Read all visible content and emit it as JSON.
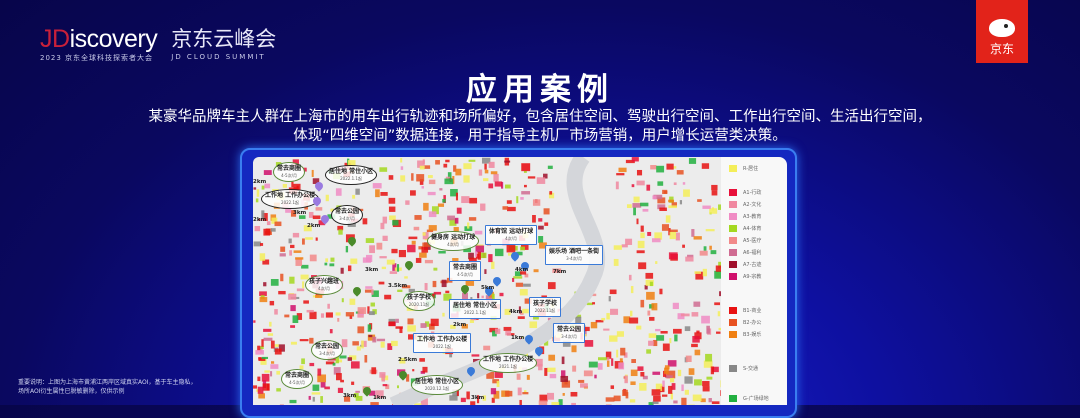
{
  "header": {
    "logo_prefix": "JD",
    "logo_suffix": "iscovery",
    "logo_sub": "2023 京东全球科技探索者大会",
    "event_cn": "京东云峰会",
    "event_en": "JD CLOUD SUMMIT",
    "brand": "京东"
  },
  "title": "应用案例",
  "description": [
    "某豪华品牌车主人群在上海市的用车出行轨迹和场所偏好，包含居住空间、驾驶出行空间、工作出行空间、生活出行空间，",
    "体现“四维空间”数据连接，用于指导主机厂市场营销，用户增长运营类决策。"
  ],
  "note": [
    "重要说明：上图为上海市黄浦江两岸区域真实AOI，基于车主隐私，",
    "场所AOI衍生属性已脱敏删除，仅供示例"
  ],
  "legend": [
    {
      "label": "R-居住",
      "color": "#f4ee5a"
    },
    {
      "label": "A1-行政",
      "color": "#e8103a"
    },
    {
      "label": "A2-文化",
      "color": "#f088a0"
    },
    {
      "label": "A3-教育",
      "color": "#f08cc4"
    },
    {
      "label": "A4-体育",
      "color": "#a4d820"
    },
    {
      "label": "A5-医疗",
      "color": "#f28a8a"
    },
    {
      "label": "A6-福利",
      "color": "#d06c92"
    },
    {
      "label": "A7-古迹",
      "color": "#a0102c"
    },
    {
      "label": "A9-宗教",
      "color": "#d0106c"
    },
    {
      "label": "B1-商业",
      "color": "#e81212"
    },
    {
      "label": "B2-办公",
      "color": "#e85222"
    },
    {
      "label": "B3-娱乐",
      "color": "#f08012"
    },
    {
      "label": "S-交通",
      "color": "#888888"
    },
    {
      "label": "G-广场绿地",
      "color": "#22b040"
    }
  ],
  "callouts": [
    {
      "title": "常去商圈",
      "sub": "4-5次/月",
      "style": "g"
    },
    {
      "title": "居住地 常住小区",
      "sub": "2022.1.1起",
      "style": "k"
    },
    {
      "title": "工作地 工作办公楼",
      "sub": "2022.1起",
      "style": "k"
    },
    {
      "title": "常去公园",
      "sub": "3-4次/月",
      "style": "k"
    },
    {
      "title": "孩子兴趣班",
      "sub": "4次/月",
      "style": "g"
    },
    {
      "title": "常去公园",
      "sub": "3-4次/月",
      "style": "g"
    },
    {
      "title": "常去商圈",
      "sub": "4-5次/月",
      "style": "g"
    },
    {
      "title": "健身房 运动打球",
      "sub": "4次/月",
      "style": "g"
    },
    {
      "title": "孩子学校",
      "sub": "2020.11起",
      "style": "g"
    },
    {
      "title": "居住地 常住小区",
      "sub": "2020.12.1起",
      "style": "g"
    },
    {
      "title": "工作地 工作办公楼",
      "sub": "2021.1起",
      "style": "g"
    },
    {
      "title": "体育馆 运动打球",
      "sub": "4次/月",
      "style": "b"
    },
    {
      "title": "常去商圈",
      "sub": "4-5次/月",
      "style": "b"
    },
    {
      "title": "居住地 常住小区",
      "sub": "2022.1.1起",
      "style": "b"
    },
    {
      "title": "工作地 工作办公楼",
      "sub": "2022.1起",
      "style": "b"
    },
    {
      "title": "娱乐场 酒吧一条街",
      "sub": "3-4次/月",
      "style": "b"
    },
    {
      "title": "孩子学校",
      "sub": "2022.11起",
      "style": "b"
    },
    {
      "title": "常去公园",
      "sub": "3-4次/月",
      "style": "b"
    }
  ],
  "distances": [
    "2km",
    "3km",
    "2km",
    "2km",
    "3km",
    "3.5km",
    "2.5km",
    "1km",
    "3km",
    "2km",
    "4km",
    "7km",
    "4km",
    "1km",
    "5km",
    "3km"
  ]
}
